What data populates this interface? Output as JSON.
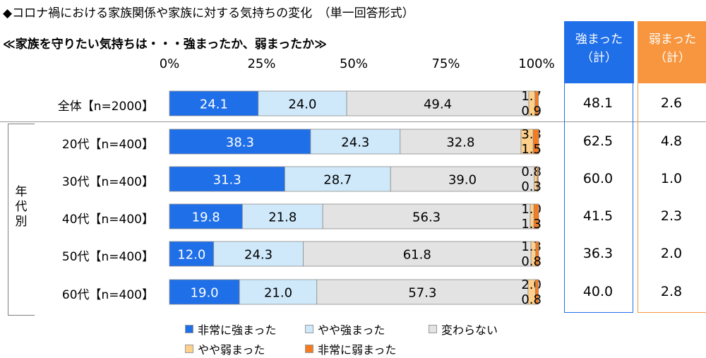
{
  "title": "◆コロナ禍における家族関係や家族に対する気持ちの変化　（単一回答形式）",
  "subtitle": "≪家族を守りたい気持ちは・・・強まったか、弱まったか≫",
  "group_label": "年代別",
  "summary_headers": {
    "strong": "強まった（計）",
    "weak": "弱まった（計）"
  },
  "colors": {
    "非常に強まった": "#1f6fe8",
    "やや強まった": "#cfe9fb",
    "変わらない": "#e3e3e3",
    "やや弱まった": "#ffd08a",
    "非常に弱まった": "#f47b20",
    "strong_header": "#1f6fe8",
    "weak_header": "#f7963e"
  },
  "chart_data": {
    "type": "bar",
    "orientation": "horizontal",
    "stacked": true,
    "xlim": [
      0,
      100
    ],
    "x_ticks": [
      "0%",
      "25%",
      "50%",
      "75%",
      "100%"
    ],
    "categories": [
      "全体【n=2000】",
      "20代【n=400】",
      "30代【n=400】",
      "40代【n=400】",
      "50代【n=400】",
      "60代【n=400】"
    ],
    "series": [
      {
        "name": "非常に強まった",
        "values": [
          24.1,
          38.3,
          31.3,
          19.8,
          12.0,
          19.0
        ]
      },
      {
        "name": "やや強まった",
        "values": [
          24.0,
          24.3,
          28.7,
          21.8,
          24.3,
          21.0
        ]
      },
      {
        "name": "変わらない",
        "values": [
          49.4,
          32.8,
          39.0,
          56.3,
          61.8,
          57.3
        ]
      },
      {
        "name": "やや弱まった",
        "values": [
          1.7,
          3.3,
          0.8,
          1.0,
          1.3,
          2.0
        ]
      },
      {
        "name": "非常に弱まった",
        "values": [
          0.9,
          1.5,
          0.3,
          1.3,
          0.8,
          0.8
        ]
      }
    ],
    "strong_total": [
      48.1,
      62.5,
      60.0,
      41.5,
      36.3,
      40.0
    ],
    "weak_total": [
      2.6,
      4.8,
      1.0,
      2.3,
      2.0,
      2.8
    ],
    "legend_position": "bottom"
  }
}
